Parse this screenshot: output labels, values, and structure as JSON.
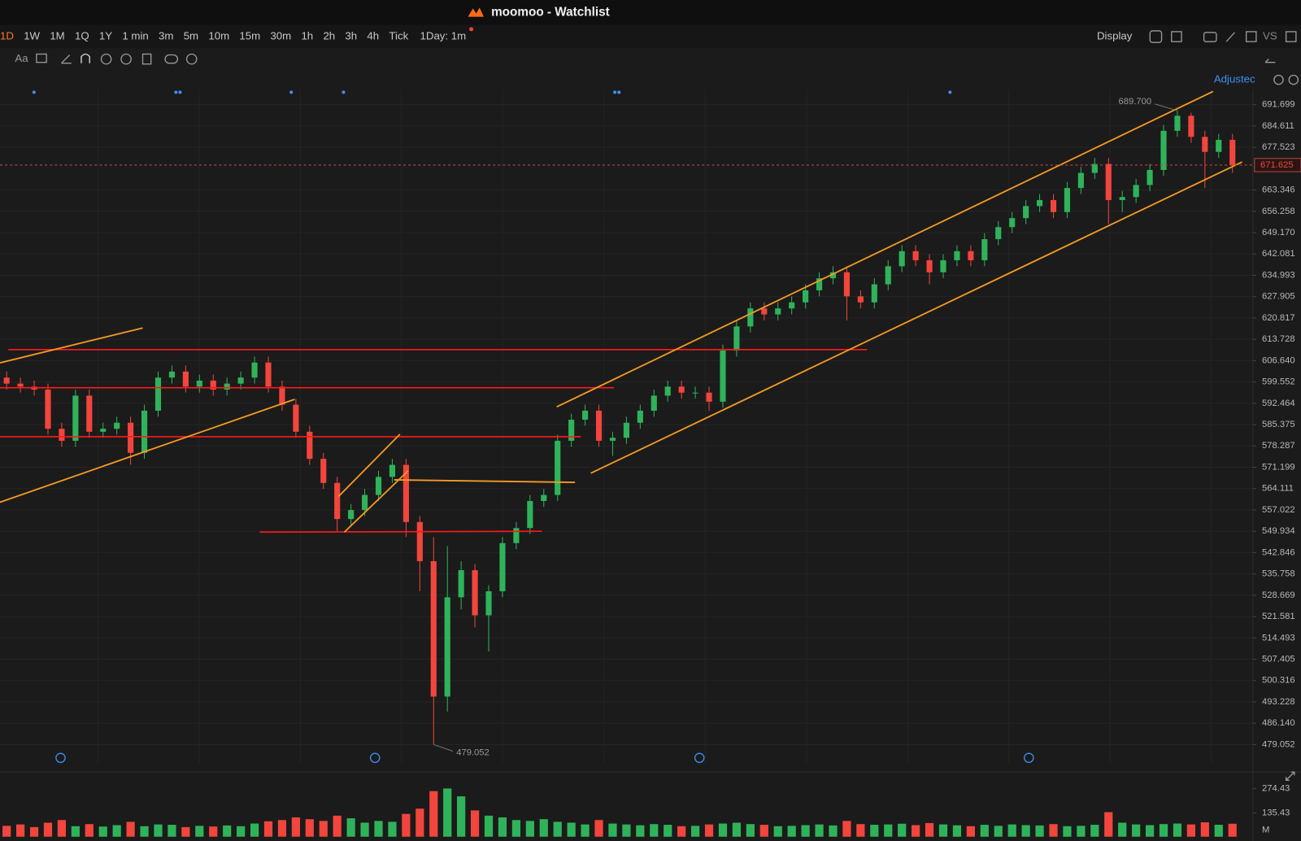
{
  "window": {
    "title": "moomoo - Watchlist"
  },
  "toolbar": {
    "periods": [
      "1D",
      "1W",
      "1M",
      "1Q",
      "1Y",
      "1 min",
      "3m",
      "5m",
      "10m",
      "15m",
      "30m",
      "1h",
      "2h",
      "3h",
      "4h",
      "Tick"
    ],
    "period_setting": "1Day: 1m",
    "display": "Display",
    "compare": "VS"
  },
  "drawing_tools": {
    "text_tool": "Aa"
  },
  "chart_header": {
    "adjust": "Adjustec"
  },
  "chart_data": {
    "type": "candlestick",
    "categories": [
      null,
      null,
      null,
      null,
      null,
      null,
      null,
      null,
      null,
      null,
      null,
      null,
      null,
      null,
      null,
      null,
      null,
      null,
      null,
      null,
      null,
      null,
      null,
      null,
      null,
      null,
      null,
      null,
      null,
      null,
      null,
      null,
      null,
      null,
      null,
      null,
      null,
      null,
      null,
      null,
      null,
      null,
      null,
      null,
      null,
      null,
      null,
      null,
      null,
      null,
      null,
      null,
      null,
      null,
      null,
      null,
      null,
      null,
      null,
      null,
      null,
      null,
      null,
      null,
      null,
      null,
      null,
      null,
      null,
      null,
      null,
      null,
      null,
      null,
      null,
      null,
      null,
      null,
      null,
      null,
      null,
      null,
      null,
      null,
      null,
      null,
      null,
      null,
      null,
      null
    ],
    "open": [
      601,
      599,
      598,
      597,
      584,
      580,
      595,
      583,
      584,
      586,
      576,
      590,
      601,
      603,
      598,
      600,
      597,
      599,
      601,
      606,
      598,
      592,
      583,
      574,
      566,
      554,
      557,
      562,
      568,
      572,
      553,
      540,
      495,
      528,
      537,
      522,
      530,
      546,
      551,
      560,
      562,
      580,
      587,
      590,
      580,
      581,
      586,
      590,
      595,
      598,
      596,
      596,
      593,
      610,
      618,
      624,
      622,
      624,
      626,
      630,
      634,
      636,
      628,
      626,
      632,
      638,
      643,
      640,
      636,
      640,
      643,
      640,
      647,
      651,
      654,
      658,
      660,
      656,
      664,
      669,
      672,
      660,
      661,
      665,
      670,
      683,
      688,
      681,
      676,
      680
    ],
    "high": [
      603,
      601,
      600,
      599,
      586,
      597,
      597,
      586,
      588,
      588,
      592,
      603,
      605,
      605,
      602,
      602,
      601,
      603,
      608,
      608,
      600,
      594,
      585,
      576,
      568,
      559,
      564,
      570,
      574,
      574,
      555,
      548,
      545,
      540,
      539,
      532,
      548,
      553,
      562,
      564,
      582,
      589,
      592,
      592,
      583,
      588,
      592,
      597,
      600,
      600,
      598,
      598,
      612,
      620,
      626,
      626,
      626,
      628,
      632,
      636,
      638,
      638,
      630,
      634,
      640,
      645,
      645,
      642,
      642,
      645,
      645,
      649,
      653,
      656,
      660,
      662,
      662,
      666,
      671,
      674,
      674,
      663,
      667,
      672,
      685,
      689.7,
      689,
      683,
      682,
      682
    ],
    "low": [
      597,
      596,
      595,
      582,
      578,
      578,
      581,
      581,
      582,
      572,
      574,
      588,
      599,
      596,
      596,
      595,
      595,
      597,
      599,
      596,
      590,
      581,
      572,
      564,
      550,
      552,
      555,
      560,
      566,
      548,
      530,
      479.052,
      490,
      524,
      518,
      510,
      528,
      544,
      549,
      558,
      560,
      578,
      585,
      578,
      575,
      579,
      584,
      588,
      593,
      594,
      594,
      590,
      591,
      608,
      616,
      620,
      620,
      622,
      624,
      628,
      632,
      620,
      624,
      624,
      630,
      636,
      638,
      632,
      634,
      638,
      638,
      638,
      645,
      649,
      652,
      656,
      654,
      654,
      662,
      667,
      652,
      656,
      659,
      663,
      668,
      681,
      679,
      664,
      674,
      669
    ],
    "close": [
      599,
      598,
      597,
      584,
      580,
      595,
      583,
      584,
      586,
      576,
      590,
      601,
      603,
      598,
      600,
      597,
      599,
      601,
      606,
      598,
      592,
      583,
      574,
      566,
      554,
      557,
      562,
      568,
      572,
      553,
      540,
      495,
      528,
      537,
      522,
      530,
      546,
      551,
      560,
      562,
      580,
      587,
      590,
      580,
      581,
      586,
      590,
      595,
      598,
      596,
      596,
      593,
      610,
      618,
      624,
      622,
      624,
      626,
      630,
      634,
      636,
      628,
      626,
      632,
      638,
      643,
      640,
      636,
      640,
      643,
      640,
      647,
      651,
      654,
      658,
      660,
      656,
      664,
      669,
      672,
      660,
      661,
      665,
      670,
      683,
      688,
      681,
      676,
      680,
      671.625
    ],
    "up_color": "#2fb35a",
    "down_color": "#f2453d",
    "ylim": [
      472.7,
      696.7
    ],
    "yticks": [
      479.052,
      {
        "value": 486.14,
        "label": "486.140"
      },
      493.228,
      500.316,
      507.405,
      514.493,
      521.581,
      528.669,
      535.758,
      542.846,
      549.934,
      557.022,
      564.111,
      571.199,
      578.287,
      585.375,
      592.464,
      599.552,
      {
        "value": 606.64,
        "label": "606.640"
      },
      613.728,
      620.817,
      627.905,
      634.993,
      642.081,
      {
        "value": 649.17,
        "label": "649.170"
      },
      656.258,
      663.346,
      677.523,
      684.611,
      691.699
    ],
    "grid": true,
    "last_price": 671.625,
    "high_label": {
      "value": 689.7,
      "label": "689.700"
    },
    "low_label": 479.052,
    "volume": {
      "unit": "M",
      "ylim": [
        0,
        290
      ],
      "yticks": [
        135.43,
        274.43
      ],
      "values": [
        62,
        70,
        55,
        80,
        95,
        60,
        72,
        58,
        66,
        85,
        60,
        70,
        68,
        55,
        62,
        58,
        64,
        60,
        75,
        88,
        95,
        110,
        100,
        90,
        120,
        105,
        80,
        90,
        85,
        130,
        160,
        260,
        275,
        230,
        150,
        120,
        110,
        95,
        90,
        100,
        85,
        80,
        70,
        95,
        75,
        70,
        65,
        72,
        68,
        60,
        62,
        70,
        75,
        80,
        72,
        68,
        60,
        62,
        66,
        70,
        64,
        90,
        72,
        68,
        70,
        74,
        66,
        78,
        70,
        65,
        60,
        68,
        62,
        70,
        66,
        64,
        72,
        60,
        62,
        68,
        140,
        80,
        70,
        66,
        72,
        75,
        70,
        82,
        68,
        74
      ]
    }
  }
}
